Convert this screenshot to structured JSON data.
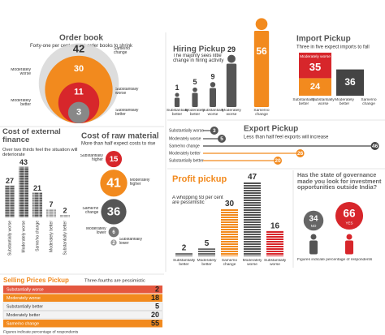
{
  "chart_data": [
    {
      "type": "nested-circles",
      "title": "Order book",
      "subtitle": "Forty-one per cent expect order books to shrink",
      "categories": [
        "Same/no change",
        "Moderately worse",
        "Substantially worse",
        "Substantially better"
      ],
      "values": [
        42,
        30,
        11,
        3
      ],
      "colors": [
        "#d9d9d9",
        "#f28a1e",
        "#d7262b",
        "#888888"
      ],
      "annotations": [
        "Moderately better"
      ]
    },
    {
      "type": "pictogram",
      "title": "Hiring Pickup",
      "subtitle": "The majority sees little change in hiring activity",
      "categories": [
        "Substantially better",
        "Moderately better",
        "Substantially worse",
        "Moderately worse",
        "Same/no change"
      ],
      "values": [
        1,
        5,
        9,
        29,
        56
      ],
      "colors": [
        "#555555",
        "#555555",
        "#555555",
        "#555555",
        "#f28a1e"
      ]
    },
    {
      "type": "stacked-bar",
      "title": "Import Pickup",
      "subtitle": "Three in five expect imports to fall",
      "categories": [
        "Moderately worse",
        "Substantially worse",
        "Same/no change"
      ],
      "values": [
        35,
        24,
        36
      ],
      "colors": [
        "#d7262b",
        "#f28a1e",
        "#444444"
      ],
      "annotations": [
        "Substantially better",
        "Moderately better"
      ]
    },
    {
      "type": "square-columns",
      "title": "Cost of external finance",
      "subtitle": "Over two thirds feel the situation will deteriorate",
      "categories": [
        "Substantially worse",
        "Moderately worse",
        "Same/no change",
        "Moderately better",
        "Substantially better"
      ],
      "values": [
        27,
        43,
        21,
        7,
        2
      ],
      "colors": [
        "#555555",
        "#444444",
        "#555555",
        "#9a9a9a",
        "#9a9a9a"
      ]
    },
    {
      "type": "bubble-column",
      "title": "Cost of raw material",
      "subtitle": "More than half expect costs to rise",
      "categories": [
        "Substantially higher",
        "Moderately higher",
        "Same/no change",
        "Moderately lower",
        "Substantially lower"
      ],
      "values": [
        15,
        41,
        36,
        6,
        2
      ],
      "colors": [
        "#d7262b",
        "#f28a1e",
        "#555555",
        "#777777",
        "#999999"
      ]
    },
    {
      "type": "lollipop",
      "title": "Export Pickup",
      "subtitle": "Less than half feel exports will increase",
      "categories": [
        "Substantially worse",
        "Moderately worse",
        "Same/no change",
        "Moderately better",
        "Substantially better"
      ],
      "values": [
        3,
        5,
        46,
        26,
        20
      ],
      "colors": [
        "#555555",
        "#555555",
        "#444444",
        "#f28a1e",
        "#f28a1e"
      ]
    },
    {
      "type": "striped-bar",
      "title": "Profit pickup",
      "subtitle": "A whopping 93 per cent are pessimistic",
      "categories": [
        "Substantially better",
        "Moderately better",
        "Same/no change",
        "Moderately worse",
        "Substantially worse"
      ],
      "values": [
        2,
        5,
        30,
        47,
        16
      ],
      "colors": [
        "#666666",
        "#666666",
        "#f28a1e",
        "#555555",
        "#d7262b"
      ]
    },
    {
      "type": "bubbles",
      "title": "Has the state of governance made you look for investment opportunities outside India?",
      "categories": [
        "NO",
        "YES"
      ],
      "values": [
        34,
        66
      ],
      "colors": [
        "#666666",
        "#d7262b"
      ],
      "note": "Figures indicate percentage of respondents"
    },
    {
      "type": "table-rows",
      "title": "Selling Prices Pickup",
      "subtitle": "Three-fourths are pessimistic",
      "categories": [
        "Substantially worse",
        "Moderately worse",
        "Substantially better",
        "Moderately better",
        "Same/no change"
      ],
      "values": [
        2,
        18,
        5,
        20,
        55
      ],
      "colors": [
        "#e4573f",
        "#f28a1e",
        "#f3f3f3",
        "#f3f3f3",
        "#f28a1e"
      ],
      "note": "Figures indicate percentage of respondents"
    }
  ]
}
